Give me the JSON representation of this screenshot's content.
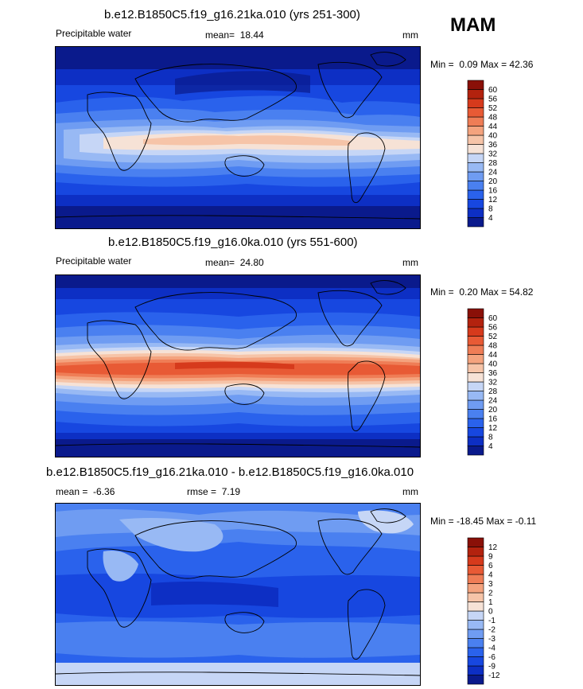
{
  "season": "MAM",
  "palette_abs": [
    "#0a1a8c",
    "#0d2fc4",
    "#1747e0",
    "#2a62ec",
    "#4a80f0",
    "#6f9cf2",
    "#98b9f4",
    "#c6d6f6",
    "#f6e2d6",
    "#f6c4a8",
    "#f4a37e",
    "#ef7d56",
    "#e85a35",
    "#d63a1c",
    "#b3220e",
    "#8a1008"
  ],
  "palette_diff": [
    "#0a1a8c",
    "#0d2fc4",
    "#1747e0",
    "#2a62ec",
    "#4a80f0",
    "#6f9cf2",
    "#98b9f4",
    "#c6d6f6",
    "#f6e2d6",
    "#f6c4a8",
    "#f4a37e",
    "#ef7d56",
    "#e85a35",
    "#d63a1c",
    "#b3220e",
    "#8a1008"
  ],
  "chart_data": [
    {
      "type": "heatmap",
      "title": "b.e12.B1850C5.f19_g16.21ka.010 (yrs 251-300)",
      "variable": "Precipitable water",
      "mean_label": "mean=",
      "mean": "18.44",
      "units": "mm",
      "min_label": "Min =",
      "min": "0.09",
      "max_label": "Max =",
      "max": "42.36",
      "colorbar_levels": [
        "4",
        "8",
        "12",
        "16",
        "20",
        "24",
        "28",
        "32",
        "36",
        "40",
        "44",
        "48",
        "52",
        "56",
        "60"
      ]
    },
    {
      "type": "heatmap",
      "title": "b.e12.B1850C5.f19_g16.0ka.010 (yrs 551-600)",
      "variable": "Precipitable water",
      "mean_label": "mean=",
      "mean": "24.80",
      "units": "mm",
      "min_label": "Min =",
      "min": "0.20",
      "max_label": "Max =",
      "max": "54.82",
      "colorbar_levels": [
        "4",
        "8",
        "12",
        "16",
        "20",
        "24",
        "28",
        "32",
        "36",
        "40",
        "44",
        "48",
        "52",
        "56",
        "60"
      ]
    },
    {
      "type": "heatmap",
      "title": "b.e12.B1850C5.f19_g16.21ka.010 - b.e12.B1850C5.f19_g16.0ka.010",
      "mean_label": "mean =",
      "mean": "-6.36",
      "rmse_label": "rmse =",
      "rmse": "7.19",
      "units": "mm",
      "min_label": "Min =",
      "min": "-18.45",
      "max_label": "Max =",
      "max": "-0.11",
      "colorbar_levels": [
        "-12",
        "-9",
        "-6",
        "-4",
        "-3",
        "-2",
        "-1",
        "0",
        "1",
        "2",
        "3",
        "4",
        "6",
        "9",
        "12"
      ]
    }
  ]
}
